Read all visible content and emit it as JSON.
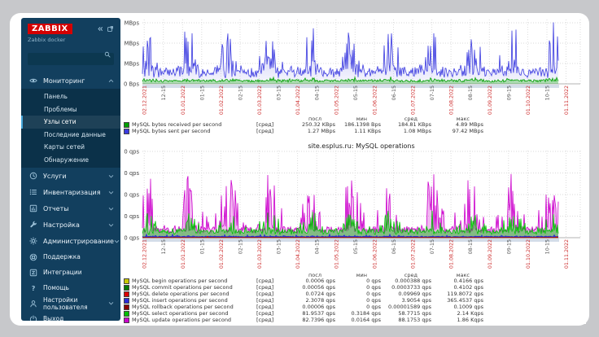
{
  "sidebar": {
    "logo": "ZABBIX",
    "subtitle": "Zabbix docker",
    "search": {
      "value": "",
      "placeholder": ""
    },
    "menu": [
      {
        "id": "monitoring",
        "label": "Мониторинг",
        "icon": "eye-icon",
        "expandable": true,
        "expanded": true,
        "submenu": [
          {
            "id": "dashboard",
            "label": "Панель",
            "selected": false
          },
          {
            "id": "problems",
            "label": "Проблемы",
            "selected": false
          },
          {
            "id": "hosts",
            "label": "Узлы сети",
            "selected": true
          },
          {
            "id": "latest-data",
            "label": "Последние данные",
            "selected": false
          },
          {
            "id": "maps",
            "label": "Карты сетей",
            "selected": false
          },
          {
            "id": "discovery",
            "label": "Обнаружение",
            "selected": false
          }
        ]
      },
      {
        "id": "services",
        "label": "Услуги",
        "icon": "services-icon",
        "expandable": true,
        "expanded": false
      },
      {
        "id": "inventory",
        "label": "Инвентаризация",
        "icon": "inventory-icon",
        "expandable": true,
        "expanded": false
      },
      {
        "id": "reports",
        "label": "Отчеты",
        "icon": "reports-icon",
        "expandable": true,
        "expanded": false
      },
      {
        "id": "configuration",
        "label": "Настройка",
        "icon": "configuration-icon",
        "expandable": true,
        "expanded": false
      },
      {
        "id": "administration",
        "label": "Администрирование",
        "icon": "administration-icon",
        "expandable": true,
        "expanded": false
      }
    ],
    "footer_menu": [
      {
        "id": "support",
        "label": "Поддержка",
        "icon": "support-icon"
      },
      {
        "id": "integrations",
        "label": "Интеграции",
        "icon": "integrations-icon"
      },
      {
        "id": "help",
        "label": "Помощь",
        "icon": "help-icon"
      },
      {
        "id": "user-settings",
        "label": "Настройки пользователя",
        "icon": "user-settings-icon",
        "expandable": true,
        "expanded": false
      },
      {
        "id": "signout",
        "label": "Выход",
        "icon": "logout-icon"
      }
    ]
  },
  "chart_data": [
    {
      "type": "area",
      "title": "",
      "y_unit": "MBps",
      "ylim": [
        0,
        3
      ],
      "y_ticks": [
        "0 Bps",
        "1 MBps",
        "2 MBps",
        "3 MBps"
      ],
      "x_range": [
        "02.12.2021",
        "01.11.2022"
      ],
      "data_end_fraction": 0.952,
      "grid": true,
      "legend_position": "bottom",
      "legend_headers": [
        "посл",
        "мин",
        "сред",
        "макс"
      ],
      "x_ticks": [
        {
          "label": "02.12.2021",
          "kind": "date"
        },
        {
          "label": "12-15",
          "kind": "time"
        },
        {
          "label": "01.01.2022",
          "kind": "date"
        },
        {
          "label": "01-15",
          "kind": "time"
        },
        {
          "label": "01.02.2022",
          "kind": "date"
        },
        {
          "label": "02-15",
          "kind": "time"
        },
        {
          "label": "01.03.2022",
          "kind": "date"
        },
        {
          "label": "03-15",
          "kind": "time"
        },
        {
          "label": "01.04.2022",
          "kind": "date"
        },
        {
          "label": "04-15",
          "kind": "time"
        },
        {
          "label": "01.05.2022",
          "kind": "date"
        },
        {
          "label": "05-15",
          "kind": "time"
        },
        {
          "label": "01.06.2022",
          "kind": "date"
        },
        {
          "label": "06-15",
          "kind": "time"
        },
        {
          "label": "01.07.2022",
          "kind": "date"
        },
        {
          "label": "07-15",
          "kind": "time"
        },
        {
          "label": "01.08.2022",
          "kind": "date"
        },
        {
          "label": "08-15",
          "kind": "time"
        },
        {
          "label": "01.09.2022",
          "kind": "date"
        },
        {
          "label": "09-15",
          "kind": "time"
        },
        {
          "label": "01.10.2022",
          "kind": "date"
        },
        {
          "label": "10-15",
          "kind": "time"
        },
        {
          "label": "01.11.2022",
          "kind": "date"
        }
      ],
      "draw_order": [
        "sent",
        "received"
      ],
      "series": [
        {
          "id": "received",
          "label": "MySQL bytes received per second",
          "function": "[сред]",
          "color": "#00A000",
          "fill": "rgba(0,160,0,0.3)",
          "stats": {
            "last": "250.32 KBps",
            "min": "186.1398 Bps",
            "avg": "184.81 KBps",
            "max": "4.89 MBps"
          },
          "profile": {
            "base": 0.14,
            "noise": 0.08,
            "spike_p": 0.08,
            "spike": 0.18,
            "floor": 0.07,
            "clamp": 0.6,
            "bursty": true
          }
        },
        {
          "id": "sent",
          "label": "MySQL bytes sent per second",
          "function": "[сред]",
          "color": "#3B3BE0",
          "fill": "gradient",
          "stats": {
            "last": "1.27 MBps",
            "min": "1.11 KBps",
            "avg": "1.08 MBps",
            "max": "97.42 MBps"
          },
          "profile": {
            "base": 0.5,
            "noise": 0.55,
            "spike_p": 0.32,
            "spike": 2.0,
            "floor": 0.28,
            "clamp": 3.02,
            "bursty": true
          }
        }
      ]
    },
    {
      "type": "area",
      "title": "site.esplus.ru: MySQL operations",
      "y_unit": "qps",
      "ylim": [
        0,
        400
      ],
      "y_ticks": [
        "0 qps",
        "100 qps",
        "200 qps",
        "300 qps",
        "400 qps"
      ],
      "x_range": [
        "02.12.2021",
        "01.11.2022"
      ],
      "data_end_fraction": 0.952,
      "grid": true,
      "legend_position": "bottom",
      "legend_headers": [
        "посл",
        "мин",
        "сред",
        "макс"
      ],
      "x_ticks": [
        {
          "label": "02.12.2021",
          "kind": "date"
        },
        {
          "label": "12-15",
          "kind": "time"
        },
        {
          "label": "01.01.2022",
          "kind": "date"
        },
        {
          "label": "01-15",
          "kind": "time"
        },
        {
          "label": "01.02.2022",
          "kind": "date"
        },
        {
          "label": "02-15",
          "kind": "time"
        },
        {
          "label": "01.03.2022",
          "kind": "date"
        },
        {
          "label": "03-15",
          "kind": "time"
        },
        {
          "label": "01.04.2022",
          "kind": "date"
        },
        {
          "label": "04-15",
          "kind": "time"
        },
        {
          "label": "01.05.2022",
          "kind": "date"
        },
        {
          "label": "05-15",
          "kind": "time"
        },
        {
          "label": "01.06.2022",
          "kind": "date"
        },
        {
          "label": "06-15",
          "kind": "time"
        },
        {
          "label": "01.07.2022",
          "kind": "date"
        },
        {
          "label": "07-15",
          "kind": "time"
        },
        {
          "label": "01.08.2022",
          "kind": "date"
        },
        {
          "label": "08-15",
          "kind": "time"
        },
        {
          "label": "01.09.2022",
          "kind": "date"
        },
        {
          "label": "09-15",
          "kind": "time"
        },
        {
          "label": "01.10.2022",
          "kind": "date"
        },
        {
          "label": "10-15",
          "kind": "time"
        },
        {
          "label": "01.11.2022",
          "kind": "date"
        }
      ],
      "draw_order": [
        "update",
        "select",
        "insert",
        "begin",
        "commit",
        "delete",
        "rollback"
      ],
      "series": [
        {
          "id": "begin",
          "label": "MySQL begin operations per second",
          "function": "[сред]",
          "color": "#C9C900",
          "fill": "none",
          "stats": {
            "last": "0.0006 qps",
            "min": "0 qps",
            "avg": "0.000388 qps",
            "max": "0.4166 qps"
          },
          "profile": {
            "base": 0.4,
            "noise": 0.3,
            "spike_p": 0,
            "spike": 0,
            "floor": 0.1,
            "clamp": 1.5,
            "bursty": false
          }
        },
        {
          "id": "commit",
          "label": "MySQL commit operations per second",
          "function": "[сред]",
          "color": "#067A06",
          "fill": "none",
          "stats": {
            "last": "0.00056 qps",
            "min": "0 qps",
            "avg": "0.0003733 qps",
            "max": "0.4102 qps"
          },
          "profile": {
            "base": 0.5,
            "noise": 0.3,
            "spike_p": 0,
            "spike": 0,
            "floor": 0.1,
            "clamp": 1.5,
            "bursty": false
          }
        },
        {
          "id": "delete",
          "label": "MySQL delete operations per second",
          "function": "[сред]",
          "color": "#DD0000",
          "fill": "none",
          "stats": {
            "last": "0.0724 qps",
            "min": "0 qps",
            "avg": "0.09969 qps",
            "max": "119.8072 qps"
          },
          "profile": {
            "base": 0.8,
            "noise": 0.8,
            "spike_p": 0.012,
            "spike": 5,
            "floor": 0.2,
            "clamp": 10,
            "bursty": false
          }
        },
        {
          "id": "insert",
          "label": "MySQL insert operations per second",
          "function": "[сред]",
          "color": "#2A2AD8",
          "fill": "rgba(45,45,215,0.85)",
          "stats": {
            "last": "2.3078 qps",
            "min": "0 qps",
            "avg": "3.9054 qps",
            "max": "365.4537 qps"
          },
          "profile": {
            "base": 4.5,
            "noise": 4,
            "spike_p": 0.05,
            "spike": 10,
            "floor": 2,
            "clamp": 28,
            "bursty": false
          }
        },
        {
          "id": "rollback",
          "label": "MySQL rollback operations per second",
          "function": "[сред]",
          "color": "#8B0000",
          "fill": "none",
          "stats": {
            "last": "0.00006 qps",
            "min": "0 qps",
            "avg": "0.00001589 qps",
            "max": "0.1009 qps"
          },
          "profile": {
            "base": 0.3,
            "noise": 0.2,
            "spike_p": 0,
            "spike": 0,
            "floor": 0.1,
            "clamp": 1,
            "bursty": false
          }
        },
        {
          "id": "select",
          "label": "MySQL select operations per second",
          "function": "[сред]",
          "color": "#00C000",
          "fill": "rgba(0,190,0,0.45)",
          "stats": {
            "last": "81.9537 qps",
            "min": "0.3184 qps",
            "avg": "58.7715 qps",
            "max": "2.14 Kqps"
          },
          "profile": {
            "base": 26,
            "noise": 20,
            "spike_p": 0.35,
            "spike": 80,
            "floor": 10,
            "clamp": 125,
            "bursty": true
          }
        },
        {
          "id": "update",
          "label": "MySQL update operations per second",
          "function": "[сред]",
          "color": "#CC00CC",
          "fill": "rgba(204,0,204,0.28)",
          "stats": {
            "last": "82.7396 qps",
            "min": "0.0164 qps",
            "avg": "88.1753 qps",
            "max": "1.86 Kqps"
          },
          "profile": {
            "base": 34,
            "noise": 26,
            "spike_p": 0.45,
            "spike": 250,
            "floor": 16,
            "clamp": 312,
            "bursty": true
          }
        }
      ]
    }
  ]
}
